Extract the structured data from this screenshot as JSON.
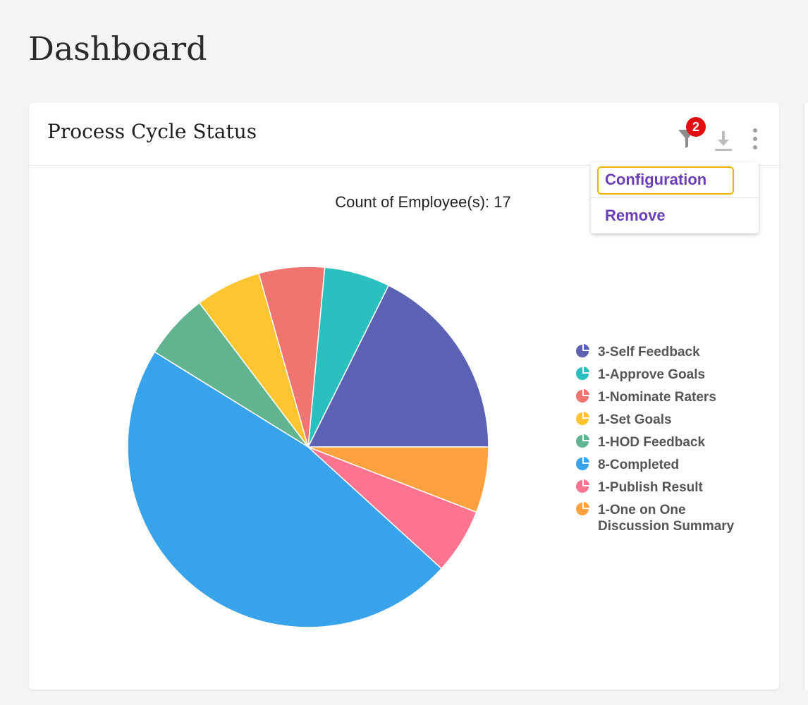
{
  "page": {
    "title": "Dashboard"
  },
  "card": {
    "title": "Process Cycle Status",
    "filter_badge": "2"
  },
  "menu": {
    "items": [
      {
        "label": "Configuration"
      },
      {
        "label": "Remove"
      }
    ]
  },
  "chart_data": {
    "type": "pie",
    "title": "Count of Employee(s): 17",
    "legend_position": "right",
    "slices": [
      {
        "label": "3-Self Feedback",
        "value": 3,
        "color": "#5c62b3"
      },
      {
        "label": "1-Approve Goals",
        "value": 1,
        "color": "#2bbfbf"
      },
      {
        "label": "1-Nominate Raters",
        "value": 1,
        "color": "#f07470"
      },
      {
        "label": "1-Set Goals",
        "value": 1,
        "color": "#fec531"
      },
      {
        "label": "1-HOD Feedback",
        "value": 1,
        "color": "#62b38f"
      },
      {
        "label": "8-Completed",
        "value": 8,
        "color": "#38a2ea"
      },
      {
        "label": "1-Publish Result",
        "value": 1,
        "color": "#fd7491"
      },
      {
        "label": "1-One on One Discussion Summary",
        "value": 1,
        "color": "#fea13f"
      }
    ]
  }
}
